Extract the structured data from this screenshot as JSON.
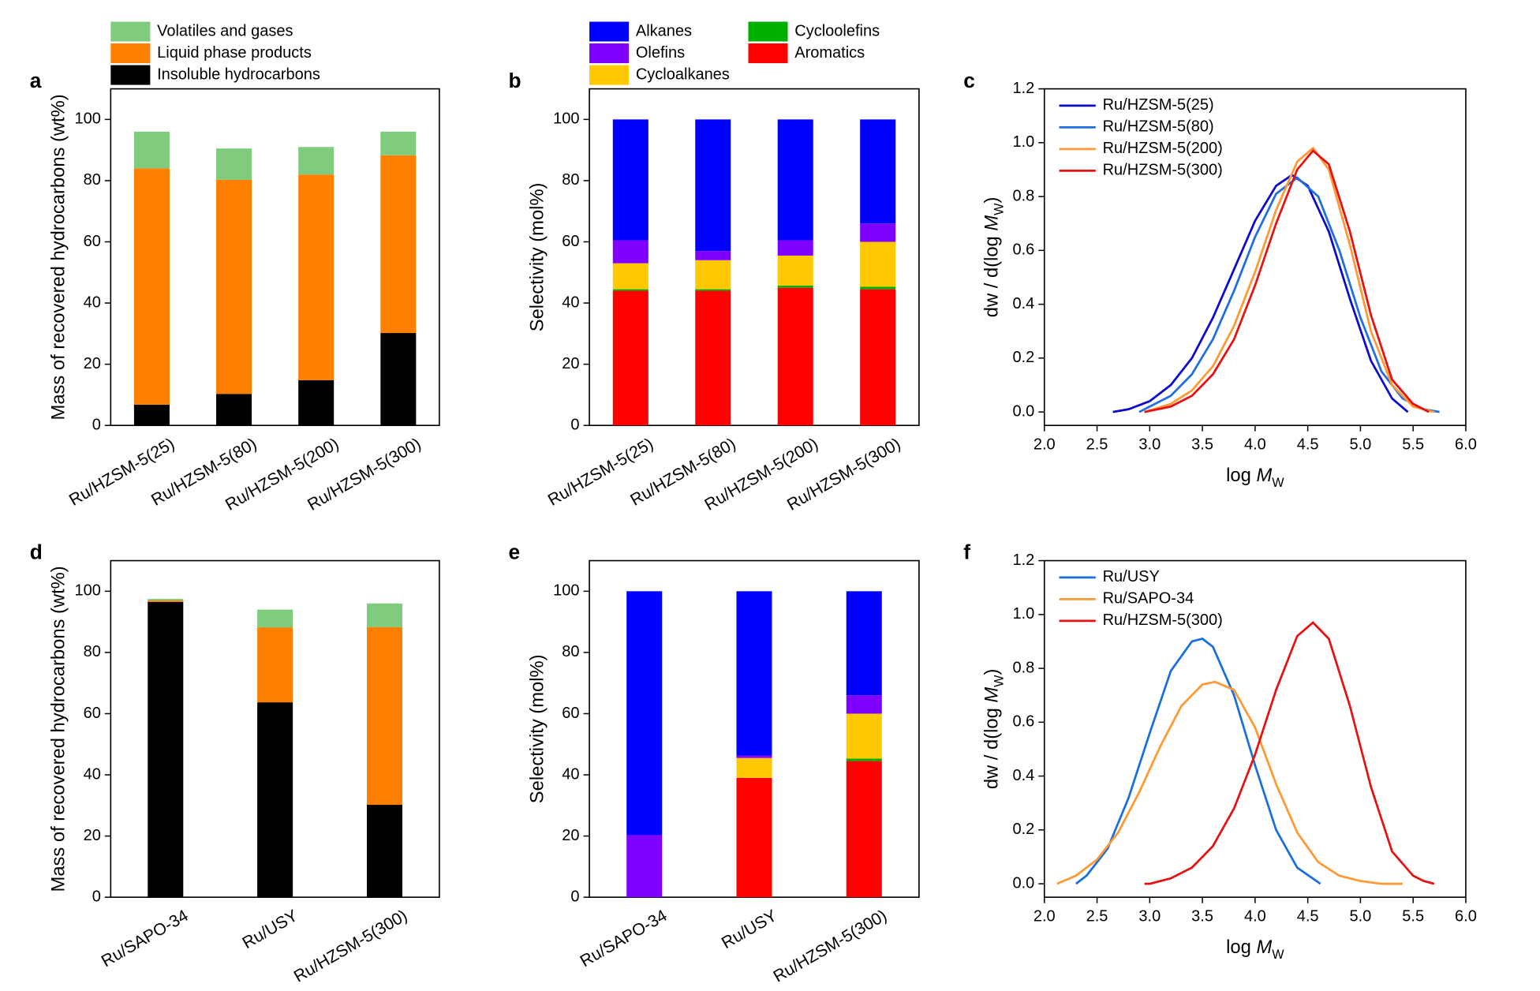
{
  "chart_data": [
    {
      "type": "stacked_bar",
      "panel_label": "a",
      "y_label": "Mass of recovered hydrocarbons (wt%)",
      "legend": "above",
      "categories": [
        "Ru/HZSM-5(25)",
        "Ru/HZSM-5(80)",
        "Ru/HZSM-5(200)",
        "Ru/HZSM-5(300)"
      ],
      "series": [
        {
          "name": "Insoluble hydrocarbons",
          "color": "#000000",
          "values": [
            6.8,
            10.3,
            14.8,
            30.2
          ]
        },
        {
          "name": "Liquid phase products",
          "color": "#ff8000",
          "values": [
            77.2,
            70,
            67.2,
            58.1
          ]
        },
        {
          "name": "Volatiles and gases",
          "color": "#7fcc7f",
          "values": [
            12,
            10.2,
            9,
            7.7
          ]
        }
      ],
      "ylim": [
        0,
        110
      ],
      "yticks": [
        0,
        20,
        40,
        60,
        80,
        100
      ]
    },
    {
      "type": "stacked_bar",
      "panel_label": "b",
      "y_label": "Selectivity (mol%)",
      "legend": "above",
      "categories": [
        "Ru/HZSM-5(25)",
        "Ru/HZSM-5(80)",
        "Ru/HZSM-5(200)",
        "Ru/HZSM-5(300)"
      ],
      "series": [
        {
          "name": "Aromatics",
          "color": "#ff0000",
          "values": [
            44,
            44,
            45,
            44.5
          ]
        },
        {
          "name": "Cycloolefins",
          "color": "#00b000",
          "values": [
            0.5,
            0.5,
            0.7,
            0.8
          ]
        },
        {
          "name": "Cycloalkanes",
          "color": "#ffc800",
          "values": [
            8.5,
            9.5,
            9.8,
            14.7
          ]
        },
        {
          "name": "Olefins",
          "color": "#8000ff",
          "values": [
            7.5,
            3,
            5,
            6
          ]
        },
        {
          "name": "Alkanes",
          "color": "#0000ff",
          "values": [
            39.5,
            43,
            39.5,
            34
          ]
        }
      ],
      "ylim": [
        0,
        110
      ],
      "yticks": [
        0,
        20,
        40,
        60,
        80,
        100
      ]
    },
    {
      "type": "line",
      "panel_label": "c",
      "x_label": [
        "log ",
        "M",
        "W"
      ],
      "y_label": [
        "dw / d(log ",
        "M",
        "W",
        ")"
      ],
      "legend": "upper left",
      "series": [
        {
          "name": "Ru/HZSM-5(25)",
          "color": "#0a0ad0",
          "x": [
            2.65,
            2.8,
            3.0,
            3.2,
            3.4,
            3.6,
            3.8,
            4.0,
            4.2,
            4.35,
            4.5,
            4.7,
            4.9,
            5.1,
            5.3,
            5.45
          ],
          "values": [
            0.0,
            0.01,
            0.04,
            0.1,
            0.2,
            0.35,
            0.53,
            0.71,
            0.84,
            0.88,
            0.84,
            0.67,
            0.42,
            0.19,
            0.05,
            0.0
          ]
        },
        {
          "name": "Ru/HZSM-5(80)",
          "color": "#1f6fe0",
          "x": [
            2.9,
            3.0,
            3.2,
            3.4,
            3.6,
            3.8,
            4.0,
            4.2,
            4.4,
            4.6,
            4.8,
            5.0,
            5.2,
            5.4,
            5.6,
            5.75
          ],
          "values": [
            0.0,
            0.02,
            0.06,
            0.14,
            0.27,
            0.45,
            0.65,
            0.81,
            0.87,
            0.8,
            0.6,
            0.35,
            0.15,
            0.05,
            0.01,
            0.0
          ]
        },
        {
          "name": "Ru/HZSM-5(200)",
          "color": "#ff9933",
          "x": [
            2.95,
            3.2,
            3.4,
            3.6,
            3.8,
            4.0,
            4.2,
            4.4,
            4.55,
            4.7,
            4.9,
            5.1,
            5.3,
            5.5,
            5.7
          ],
          "values": [
            0.0,
            0.03,
            0.08,
            0.17,
            0.32,
            0.52,
            0.75,
            0.93,
            0.98,
            0.9,
            0.62,
            0.3,
            0.1,
            0.02,
            0.0
          ]
        },
        {
          "name": "Ru/HZSM-5(300)",
          "color": "#e81010",
          "x": [
            2.95,
            3.2,
            3.4,
            3.6,
            3.8,
            4.0,
            4.2,
            4.4,
            4.55,
            4.7,
            4.9,
            5.1,
            5.3,
            5.5,
            5.65
          ],
          "values": [
            0.0,
            0.02,
            0.06,
            0.14,
            0.27,
            0.47,
            0.7,
            0.9,
            0.97,
            0.92,
            0.67,
            0.36,
            0.12,
            0.03,
            0.0
          ]
        }
      ],
      "xlim": [
        2,
        6
      ],
      "xticks": [
        {
          "value": 2,
          "label": "2.0"
        },
        {
          "value": 2.5,
          "label": "2.5"
        },
        {
          "value": 3,
          "label": "3.0"
        },
        {
          "value": 3.5,
          "label": "3.5"
        },
        {
          "value": 4,
          "label": "4.0"
        },
        {
          "value": 4.5,
          "label": "4.5"
        },
        {
          "value": 5,
          "label": "5.0"
        },
        {
          "value": 5.5,
          "label": "5.5"
        },
        {
          "value": 6,
          "label": "6.0"
        }
      ],
      "ylim": [
        -0.05,
        1.2
      ],
      "yticks": [
        {
          "value": 0,
          "label": "0.0"
        },
        {
          "value": 0.2,
          "label": "0.2"
        },
        {
          "value": 0.4,
          "label": "0.4"
        },
        {
          "value": 0.6,
          "label": "0.6"
        },
        {
          "value": 0.8,
          "label": "0.8"
        },
        {
          "value": 1,
          "label": "1.0"
        },
        {
          "value": 1.2,
          "label": "1.2"
        }
      ]
    },
    {
      "type": "stacked_bar",
      "panel_label": "d",
      "y_label": "Mass of recovered hydrocarbons (wt%)",
      "categories": [
        "Ru/SAPO-34",
        "Ru/USY",
        "Ru/HZSM-5(300)"
      ],
      "series": [
        {
          "color": "#000000",
          "values": [
            96.5,
            63.7,
            30.2
          ]
        },
        {
          "color": "#ff8000",
          "values": [
            0.5,
            24.5,
            58.1
          ]
        },
        {
          "color": "#7fcc7f",
          "values": [
            0.5,
            5.8,
            7.7
          ]
        }
      ],
      "ylim": [
        0,
        110
      ],
      "yticks": [
        0,
        20,
        40,
        60,
        80,
        100
      ]
    },
    {
      "type": "stacked_bar",
      "panel_label": "e",
      "y_label": "Selectivity (mol%)",
      "categories": [
        "Ru/SAPO-34",
        "Ru/USY",
        "Ru/HZSM-5(300)"
      ],
      "series": [
        {
          "color": "#ff0000",
          "values": [
            0,
            39,
            44.5
          ]
        },
        {
          "color": "#00b000",
          "values": [
            0,
            0,
            0.8
          ]
        },
        {
          "color": "#ffc800",
          "values": [
            0,
            6.5,
            14.7
          ]
        },
        {
          "color": "#8000ff",
          "values": [
            20.3,
            0.8,
            6
          ]
        },
        {
          "color": "#0000ff",
          "values": [
            79.7,
            53.7,
            34
          ]
        }
      ],
      "ylim": [
        0,
        110
      ],
      "yticks": [
        0,
        20,
        40,
        60,
        80,
        100
      ]
    },
    {
      "type": "line",
      "panel_label": "f",
      "x_label": [
        "log ",
        "M",
        "W"
      ],
      "y_label": [
        "dw / d(log ",
        "M",
        "W",
        ")"
      ],
      "legend": "upper left",
      "series": [
        {
          "name": "Ru/USY",
          "color": "#1a6fdf",
          "x": [
            2.3,
            2.4,
            2.6,
            2.8,
            3.0,
            3.2,
            3.4,
            3.5,
            3.6,
            3.8,
            4.0,
            4.2,
            4.4,
            4.62
          ],
          "values": [
            0.0,
            0.03,
            0.13,
            0.32,
            0.56,
            0.79,
            0.9,
            0.91,
            0.88,
            0.7,
            0.44,
            0.2,
            0.06,
            0.0
          ]
        },
        {
          "name": "Ru/SAPO-34",
          "color": "#ff9933",
          "x": [
            2.12,
            2.3,
            2.5,
            2.7,
            2.9,
            3.1,
            3.3,
            3.5,
            3.62,
            3.8,
            4.0,
            4.2,
            4.4,
            4.6,
            4.8,
            5.0,
            5.2,
            5.4
          ],
          "values": [
            0.0,
            0.03,
            0.09,
            0.19,
            0.34,
            0.51,
            0.66,
            0.74,
            0.75,
            0.72,
            0.58,
            0.37,
            0.19,
            0.08,
            0.03,
            0.01,
            0.0,
            0.0
          ]
        },
        {
          "name": "Ru/HZSM-5(300)",
          "color": "#e81010",
          "x": [
            2.95,
            3.0,
            3.2,
            3.4,
            3.6,
            3.8,
            4.0,
            4.2,
            4.4,
            4.55,
            4.7,
            4.9,
            5.1,
            5.3,
            5.5,
            5.6,
            5.7
          ],
          "values": [
            0.0,
            0.0,
            0.02,
            0.06,
            0.14,
            0.28,
            0.48,
            0.72,
            0.92,
            0.97,
            0.91,
            0.66,
            0.36,
            0.12,
            0.03,
            0.01,
            0.0
          ]
        }
      ],
      "xlim": [
        2,
        6
      ],
      "xticks": [
        {
          "value": 2,
          "label": "2.0"
        },
        {
          "value": 2.5,
          "label": "2.5"
        },
        {
          "value": 3,
          "label": "3.0"
        },
        {
          "value": 3.5,
          "label": "3.5"
        },
        {
          "value": 4,
          "label": "4.0"
        },
        {
          "value": 4.5,
          "label": "4.5"
        },
        {
          "value": 5,
          "label": "5.0"
        },
        {
          "value": 5.5,
          "label": "5.5"
        },
        {
          "value": 6,
          "label": "6.0"
        }
      ],
      "ylim": [
        -0.05,
        1.2
      ],
      "yticks": [
        {
          "value": 0,
          "label": "0.0"
        },
        {
          "value": 0.2,
          "label": "0.2"
        },
        {
          "value": 0.4,
          "label": "0.4"
        },
        {
          "value": 0.6,
          "label": "0.6"
        },
        {
          "value": 0.8,
          "label": "0.8"
        },
        {
          "value": 1,
          "label": "1.0"
        },
        {
          "value": 1.2,
          "label": "1.2"
        }
      ]
    }
  ]
}
